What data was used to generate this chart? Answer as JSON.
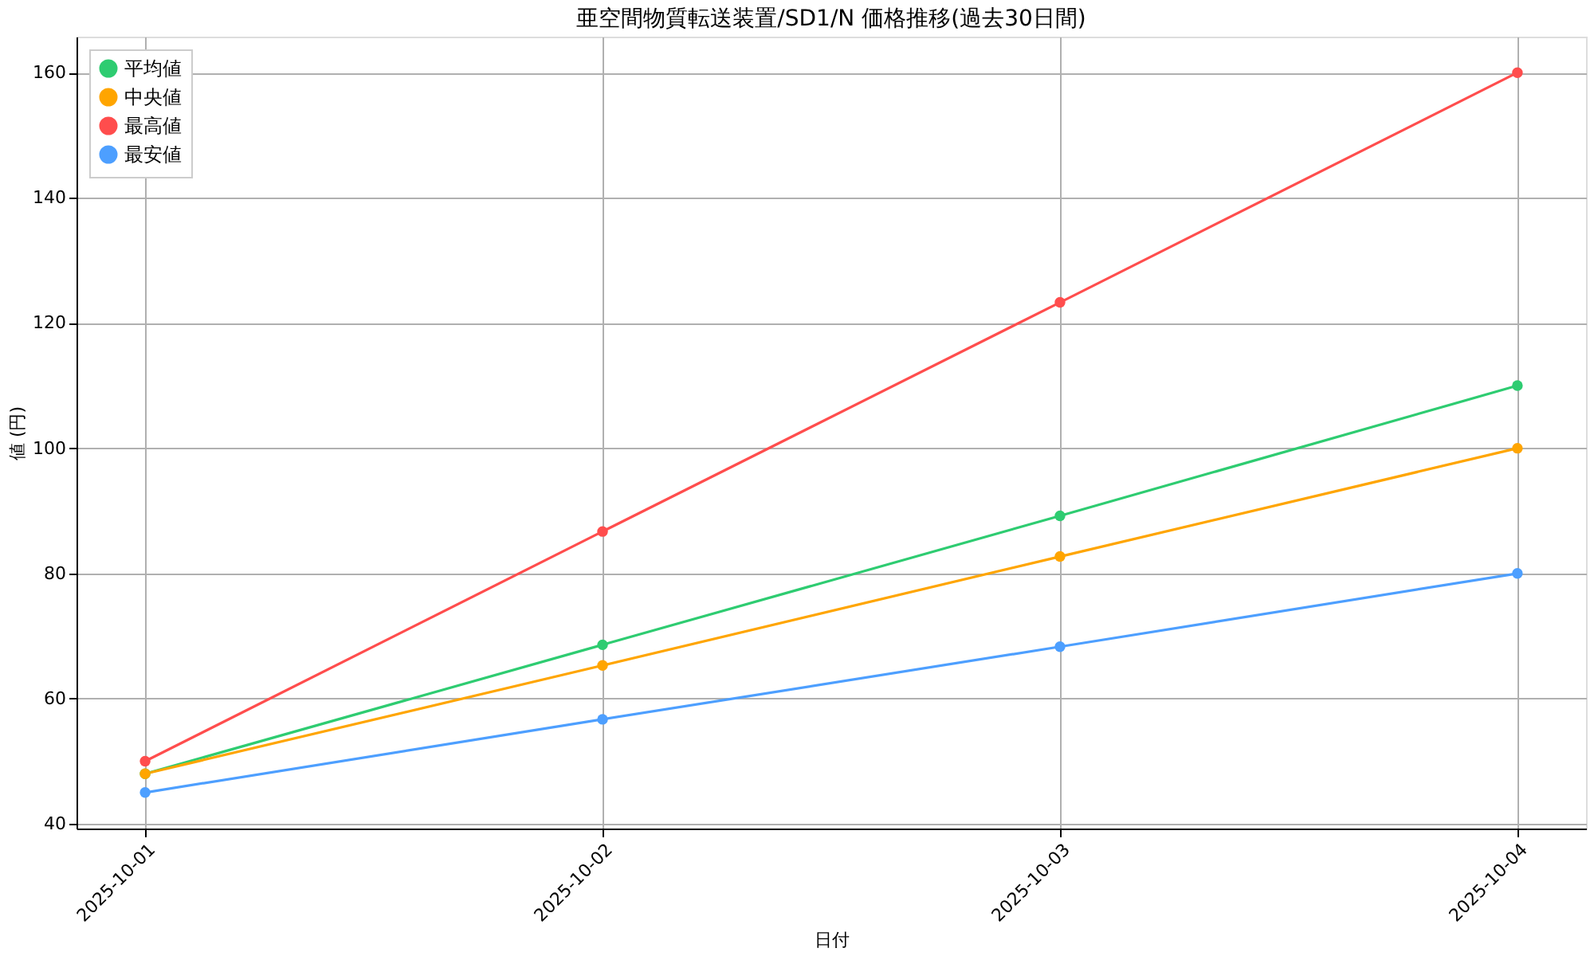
{
  "chart_data": {
    "type": "line",
    "title": "亜空間物質転送装置/SD1/N 価格推移(過去30日間)",
    "xlabel": "日付",
    "ylabel": "値 (円)",
    "x": [
      "2025-10-01",
      "2025-10-02",
      "2025-10-03",
      "2025-10-04"
    ],
    "series": [
      {
        "name": "平均値",
        "color": "#2ecc71",
        "values": [
          48,
          68.6,
          89.2,
          110
        ]
      },
      {
        "name": "中央値",
        "color": "#ffa500",
        "values": [
          48,
          65.3,
          82.7,
          100
        ]
      },
      {
        "name": "最高値",
        "color": "#ff4d4d",
        "values": [
          50,
          86.7,
          123.3,
          160
        ]
      },
      {
        "name": "最安値",
        "color": "#4d9fff",
        "values": [
          45,
          56.7,
          68.3,
          80
        ]
      }
    ],
    "xlim": [
      "2025-09-30T20:24",
      "2025-10-04T03:36"
    ],
    "xticks": [
      "2025-10-01",
      "2025-10-02",
      "2025-10-03",
      "2025-10-04"
    ],
    "ylim": [
      39.25,
      165.75
    ],
    "yticks": [
      40,
      60,
      80,
      100,
      120,
      140,
      160
    ],
    "grid": true,
    "legend": "top left",
    "marker": "circle",
    "line_style": "solid"
  }
}
